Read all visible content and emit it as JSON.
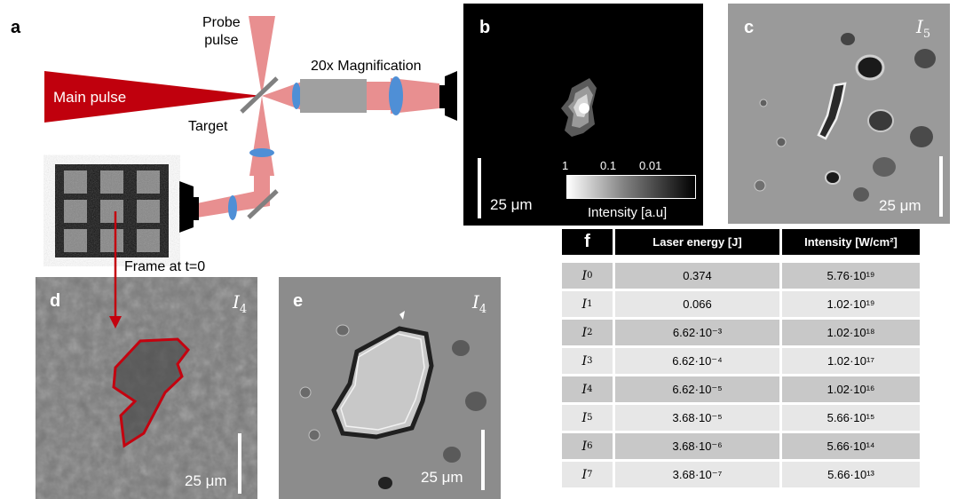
{
  "panel_a": {
    "label": "a",
    "probe_pulse": "Probe\npulse",
    "main_pulse": "Main pulse",
    "target": "Target",
    "magnification": "20x Magnification",
    "frame": "Frame at t=0"
  },
  "panel_b": {
    "label": "b",
    "scale": "25 μm",
    "colorbar_ticks": [
      "1",
      "0.1",
      "0.01"
    ],
    "colorbar_label": "Intensity [a.u]"
  },
  "panel_c": {
    "label": "c",
    "intensity": "I",
    "sub": "5",
    "scale": "25 μm"
  },
  "panel_d": {
    "label": "d",
    "intensity": "I",
    "sub": "4",
    "scale": "25 μm"
  },
  "panel_e": {
    "label": "e",
    "intensity": "I",
    "sub": "4",
    "scale": "25 μm"
  },
  "table": {
    "label": "f",
    "headers": [
      "Laser energy [J]",
      "Intensity [W/cm²]"
    ],
    "rows": [
      {
        "sym": "I",
        "sub": "0",
        "energy": "0.374",
        "intensity": "5.76·10¹⁹"
      },
      {
        "sym": "I",
        "sub": "1",
        "energy": "0.066",
        "intensity": "1.02·10¹⁹"
      },
      {
        "sym": "I",
        "sub": "2",
        "energy": "6.62·10⁻³",
        "intensity": "1.02·10¹⁸"
      },
      {
        "sym": "I",
        "sub": "3",
        "energy": "6.62·10⁻⁴",
        "intensity": "1.02·10¹⁷"
      },
      {
        "sym": "I",
        "sub": "4",
        "energy": "6.62·10⁻⁵",
        "intensity": "1.02·10¹⁶"
      },
      {
        "sym": "I",
        "sub": "5",
        "energy": "3.68·10⁻⁵",
        "intensity": "5.66·10¹⁵"
      },
      {
        "sym": "I",
        "sub": "6",
        "energy": "3.68·10⁻⁶",
        "intensity": "5.66·10¹⁴"
      },
      {
        "sym": "I",
        "sub": "7",
        "energy": "3.68·10⁻⁷",
        "intensity": "5.66·10¹³"
      }
    ]
  }
}
